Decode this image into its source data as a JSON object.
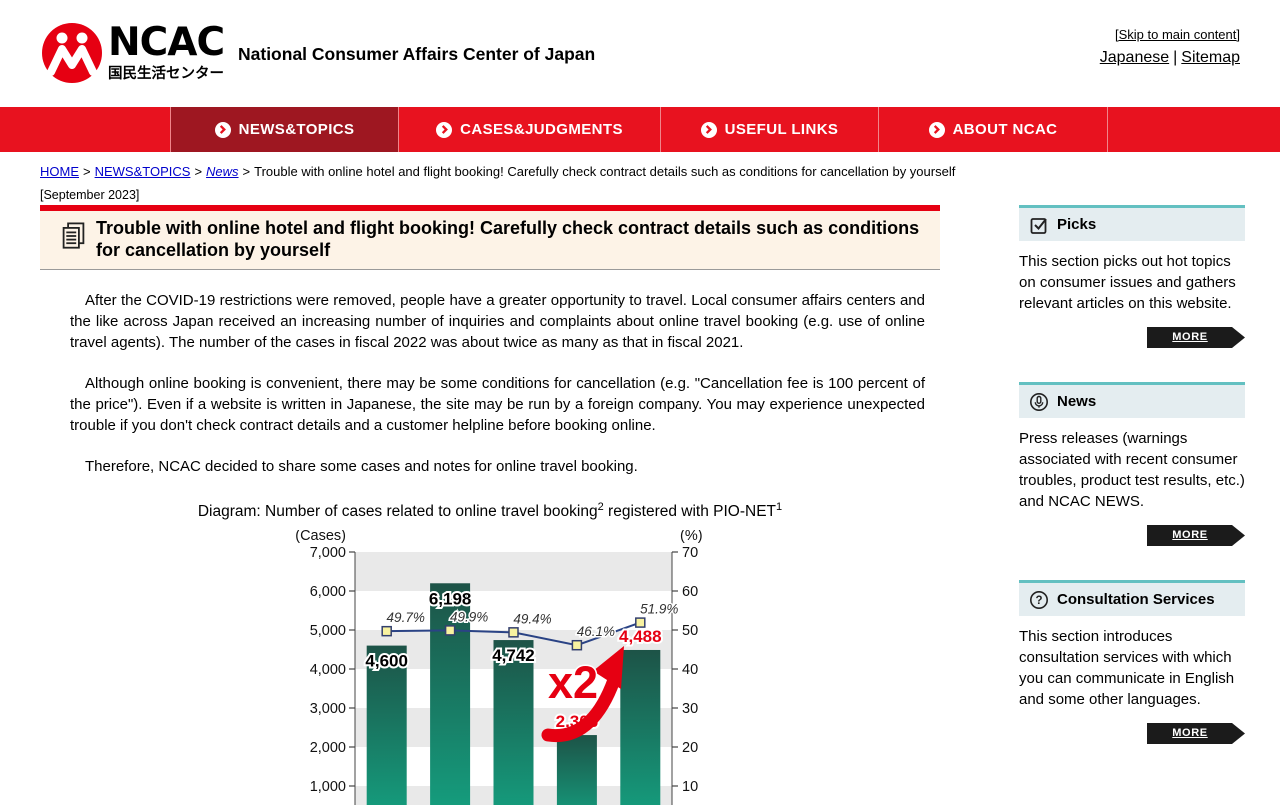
{
  "header": {
    "logo_ncac": "NCAC",
    "logo_jp": "国民生活センター",
    "site_name": "National Consumer Affairs Center of Japan",
    "skip_link": "[Skip to main content]",
    "link_japanese": "Japanese",
    "link_separator": "|",
    "link_sitemap": "Sitemap"
  },
  "nav": {
    "items": [
      {
        "label": "NEWS&TOPICS",
        "active": true
      },
      {
        "label": "CASES&JUDGMENTS",
        "active": false
      },
      {
        "label": "USEFUL LINKS",
        "active": false
      },
      {
        "label": "ABOUT NCAC",
        "active": false
      }
    ]
  },
  "breadcrumb": {
    "home": "HOME",
    "sep": ">",
    "news_topics": "NEWS&TOPICS",
    "news": "News",
    "current": "Trouble with online hotel and flight booking! Carefully check contract details such as conditions for cancellation by yourself"
  },
  "article": {
    "date": "[September 2023]",
    "title": "Trouble with online hotel and flight booking! Carefully check contract details such as conditions for cancellation by yourself",
    "paragraphs": [
      "After the COVID-19 restrictions were removed, people have a greater opportunity to travel. Local consumer affairs centers and the like across Japan received an increasing number of inquiries and complaints about online travel booking (e.g. use of online travel agents). The number of the cases in fiscal 2022 was about twice as many as that in fiscal 2021.",
      "Although online booking is convenient, there may be some conditions for cancellation (e.g. \"Cancellation fee is 100 percent of the price\"). Even if a website is written in Japanese, the site may be run by a foreign company. You may experience unexpected trouble if you don't check contract details and a customer helpline before booking online.",
      "Therefore, NCAC decided to share some cases and notes for online travel booking."
    ],
    "caption": {
      "text1": "Diagram: Number of cases related to online travel booking",
      "sup1": "2",
      "text2": " registered with PIO-NET",
      "sup2": "1"
    }
  },
  "chart_data": {
    "type": "bar+line",
    "bar_values": [
      4600,
      6198,
      4742,
      2306,
      4488
    ],
    "bar_labels": [
      "4,600",
      "6,198",
      "4,742",
      "2,306",
      "4,488"
    ],
    "bar_label_colors": [
      "#000000",
      "#000000",
      "#000000",
      "#e60012",
      "#e60012"
    ],
    "line_values": [
      49.7,
      49.9,
      49.4,
      46.1,
      51.9
    ],
    "line_labels": [
      "49.7%",
      "49.9%",
      "49.4%",
      "46.1%",
      "51.9%"
    ],
    "left_axis": {
      "title": "(Cases)",
      "max": 7000,
      "tick_step": 1000,
      "ticks": [
        "7,000",
        "6,000",
        "5,000",
        "4,000",
        "3,000",
        "2,000",
        "1,000"
      ]
    },
    "right_axis": {
      "title": "(%)",
      "max": 70,
      "tick_step": 10,
      "ticks": [
        "70",
        "60",
        "50",
        "40",
        "30",
        "20",
        "10"
      ]
    },
    "annotation": "x2",
    "bar_color_top": "#1d5347",
    "bar_color_bottom": "#14a281",
    "line_color": "#2a4385",
    "marker_fill": "#f8f2a0",
    "marker_stroke": "#333f6e",
    "band_colors": [
      "#e9e9e9",
      "#ffffff"
    ],
    "annotation_color": "#e60012",
    "legend_position": "none",
    "grid": "banded"
  },
  "sidebar": {
    "sections": [
      {
        "icon": "checkbox-icon",
        "title": "Picks",
        "text": "This section picks out hot topics on consumer issues and gathers relevant articles on this website.",
        "more": "MORE"
      },
      {
        "icon": "microphone-icon",
        "title": "News",
        "text": "Press releases (warnings associated with recent consumer troubles, product test results, etc.) and NCAC NEWS.",
        "more": "MORE"
      },
      {
        "icon": "question-icon",
        "title": "Consultation Services",
        "text": "This section introduces consultation services with which you can communicate in English and some other languages.",
        "more": "MORE"
      }
    ]
  },
  "colors": {
    "brand_red": "#e60012",
    "nav_red": "#e8121f",
    "nav_active_red": "#9e1721",
    "accent_teal": "#63c0c1",
    "title_box_bg": "#fdf3e7"
  }
}
